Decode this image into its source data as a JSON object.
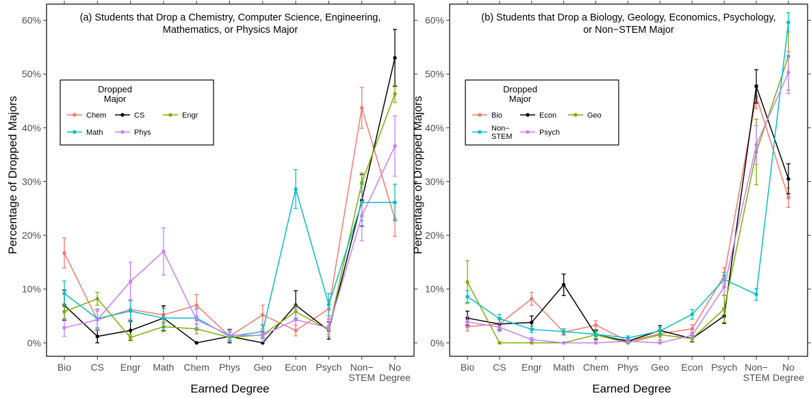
{
  "figure": {
    "ylabel": "Percentage of Dropped Majors",
    "xlabel": "Earned Degree"
  },
  "chart_data": [
    {
      "type": "line",
      "title_lines": [
        "(a) Students that Drop a Chemistry, Computer Science, Engineering,",
        "Mathematics, or Physics Major"
      ],
      "xlabel": "Earned Degree",
      "ylabel": "Percentage of Dropped Majors",
      "categories": [
        "Bio",
        "CS",
        "Engr",
        "Math",
        "Chem",
        "Phys",
        "Geo",
        "Econ",
        "Psych",
        "Non-STEM",
        "No Degree"
      ],
      "category_label_lines": [
        [
          "Bio"
        ],
        [
          "CS"
        ],
        [
          "Engr"
        ],
        [
          "Math"
        ],
        [
          "Chem"
        ],
        [
          "Phys"
        ],
        [
          "Geo"
        ],
        [
          "Econ"
        ],
        [
          "Psych"
        ],
        [
          "Non−",
          "STEM"
        ],
        [
          "No",
          "Degree"
        ]
      ],
      "y_ticks": [
        0,
        10,
        20,
        30,
        40,
        50,
        60
      ],
      "y_tick_labels": [
        "0%",
        "10%",
        "20%",
        "30%",
        "40%",
        "50%",
        "60%"
      ],
      "ylim": [
        -2.5,
        63
      ],
      "grid": false,
      "legend": {
        "title_lines": [
          "Dropped",
          "Major"
        ],
        "position": "upper-left",
        "entries": [
          "Chem",
          "CS",
          "Engr",
          "Math",
          "Phys"
        ]
      },
      "series": [
        {
          "name": "Chem",
          "color": "#f8766d",
          "values": [
            16.7,
            4.3,
            6.2,
            5.2,
            7.0,
            1.2,
            5.2,
            2.3,
            6.3,
            43.7,
            23.0
          ],
          "errors": [
            2.8,
            1.6,
            1.8,
            1.6,
            2.0,
            0.8,
            1.8,
            1.0,
            1.8,
            3.8,
            3.2
          ]
        },
        {
          "name": "CS",
          "color": "#000000",
          "values": [
            7.0,
            1.2,
            2.3,
            4.6,
            0.0,
            1.2,
            0.0,
            7.0,
            2.3,
            26.5,
            53.0
          ],
          "errors": [
            2.8,
            1.2,
            1.8,
            2.3,
            0.0,
            1.2,
            0.0,
            2.7,
            1.6,
            4.8,
            5.3
          ]
        },
        {
          "name": "Engr",
          "color": "#7cae00",
          "values": [
            5.8,
            8.2,
            1.0,
            3.0,
            2.6,
            1.0,
            1.5,
            5.8,
            2.4,
            29.8,
            46.3
          ],
          "errors": [
            1.3,
            1.2,
            0.6,
            0.9,
            0.9,
            0.5,
            0.7,
            1.2,
            0.8,
            1.8,
            1.6
          ]
        },
        {
          "name": "Math",
          "color": "#00bfc4",
          "values": [
            9.2,
            4.5,
            5.9,
            4.6,
            4.6,
            1.2,
            2.1,
            28.6,
            7.1,
            26.1,
            26.1
          ],
          "errors": [
            2.3,
            1.7,
            2.0,
            1.8,
            1.8,
            0.8,
            1.1,
            3.6,
            2.1,
            3.4,
            3.4
          ]
        },
        {
          "name": "Phys",
          "color": "#c77cff",
          "values": [
            2.8,
            4.3,
            11.4,
            17.0,
            4.3,
            1.4,
            1.4,
            4.3,
            2.8,
            23.6,
            36.6
          ],
          "errors": [
            1.6,
            2.0,
            3.6,
            4.4,
            2.0,
            1.2,
            1.2,
            2.0,
            1.6,
            4.6,
            5.6
          ]
        }
      ]
    },
    {
      "type": "line",
      "title_lines": [
        "(b) Students that Drop a Biology, Geology, Economics, Psychology,",
        "or Non−STEM Major"
      ],
      "xlabel": "Earned Degree",
      "ylabel": "Percentage of Dropped Majors",
      "categories": [
        "Bio",
        "CS",
        "Engr",
        "Math",
        "Chem",
        "Phys",
        "Geo",
        "Econ",
        "Psych",
        "Non-STEM",
        "No Degree"
      ],
      "category_label_lines": [
        [
          "Bio"
        ],
        [
          "CS"
        ],
        [
          "Engr"
        ],
        [
          "Math"
        ],
        [
          "Chem"
        ],
        [
          "Phys"
        ],
        [
          "Geo"
        ],
        [
          "Econ"
        ],
        [
          "Psych"
        ],
        [
          "Non−",
          "STEM"
        ],
        [
          "No",
          "Degree"
        ]
      ],
      "y_ticks": [
        0,
        10,
        20,
        30,
        40,
        50,
        60
      ],
      "y_tick_labels": [
        "0%",
        "10%",
        "20%",
        "30%",
        "40%",
        "50%",
        "60%"
      ],
      "ylim": [
        -2.5,
        63
      ],
      "grid": false,
      "legend": {
        "title_lines": [
          "Dropped",
          "Major"
        ],
        "position": "upper-left",
        "entries": [
          "Bio",
          "Econ",
          "Geo",
          "Non-STEM",
          "Psych"
        ],
        "entry_label_lines": [
          [
            "Bio"
          ],
          [
            "Econ"
          ],
          [
            "Geo"
          ],
          [
            "Non−",
            "STEM"
          ],
          [
            "Psych"
          ]
        ]
      },
      "series": [
        {
          "name": "Bio",
          "color": "#f8766d",
          "values": [
            3.0,
            3.5,
            8.2,
            2.0,
            3.3,
            0.3,
            1.7,
            2.6,
            12.5,
            45.8,
            27.0
          ],
          "errors": [
            0.8,
            0.8,
            1.2,
            0.6,
            0.8,
            0.3,
            0.6,
            0.8,
            1.5,
            2.2,
            1.8
          ]
        },
        {
          "name": "Econ",
          "color": "#000000",
          "values": [
            4.6,
            3.5,
            3.8,
            10.8,
            1.5,
            0.3,
            2.3,
            0.8,
            5.0,
            47.7,
            30.5
          ],
          "errors": [
            1.3,
            1.1,
            1.2,
            2.0,
            0.8,
            0.3,
            0.9,
            0.6,
            1.4,
            3.1,
            2.8
          ]
        },
        {
          "name": "Geo",
          "color": "#7cae00",
          "values": [
            11.3,
            0.0,
            0.0,
            0.0,
            1.5,
            0.0,
            1.5,
            0.8,
            6.3,
            35.5,
            53.3
          ],
          "errors": [
            4.0,
            0.0,
            0.0,
            0.0,
            1.0,
            0.0,
            1.0,
            0.7,
            2.5,
            6.1,
            6.3
          ]
        },
        {
          "name": "Non-STEM",
          "color": "#00bfc4",
          "values": [
            8.6,
            4.5,
            2.5,
            2.1,
            1.6,
            0.9,
            2.2,
            5.3,
            11.8,
            9.0,
            59.6
          ],
          "errors": [
            1.1,
            0.8,
            0.6,
            0.5,
            0.5,
            0.4,
            0.6,
            0.9,
            1.3,
            1.1,
            1.8
          ]
        },
        {
          "name": "Psych",
          "color": "#c77cff",
          "values": [
            3.9,
            2.9,
            0.6,
            0.0,
            0.0,
            0.3,
            0.0,
            1.4,
            10.4,
            36.8,
            50.3
          ],
          "errors": [
            1.0,
            0.8,
            0.4,
            0.0,
            0.0,
            0.3,
            0.0,
            0.6,
            1.5,
            3.6,
            3.9
          ]
        }
      ]
    }
  ]
}
